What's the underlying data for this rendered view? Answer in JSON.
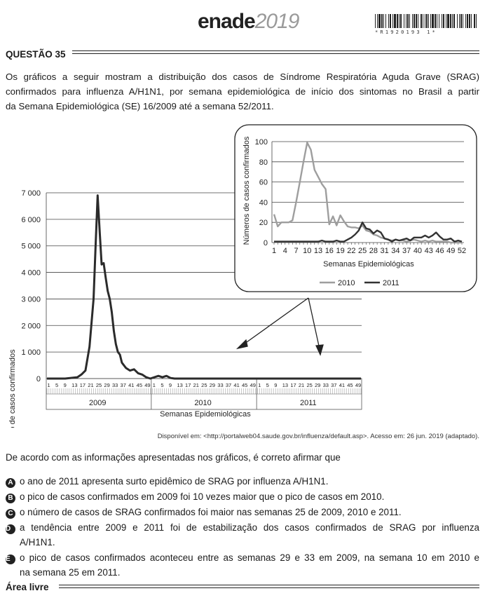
{
  "header": {
    "logo_bold": "enade",
    "logo_year": "2019",
    "barcode_digits": "*R1920193 1*"
  },
  "question": {
    "title": "QUESTÃO 35",
    "intro_1": "Os gráficos a seguir mostram a distribuição dos casos de Síndrome Respiratória Aguda Grave (SRAG)",
    "intro_2": "confirmados para influenza A/H1N1, por semana epidemiológica de início dos sintomas no Brasil a partir",
    "intro_3": "da Semana Epidemiológica (SE) 16/2009 até a semana 52/2011.",
    "source": "Disponível em: <http://portalweb04.saude.gov.br/influenza/default.asp>. Acesso em: 26 jun. 2019 (adaptado).",
    "stem": "De acordo com as informações apresentadas nos gráficos, é correto afirmar que",
    "alternatives": [
      {
        "letter": "A",
        "line1": "o ano de 2011 apresenta surto epidêmico de SRAG por influenza A/H1N1.",
        "line2": ""
      },
      {
        "letter": "B",
        "line1": "o pico de casos confirmados em 2009 foi 10 vezes maior que o pico de casos em 2010.",
        "line2": ""
      },
      {
        "letter": "C",
        "line1": "o número de casos de SRAG confirmados foi maior nas semanas 25 de 2009, 2010 e 2011.",
        "line2": ""
      },
      {
        "letter": "D",
        "line1": "a tendência entre 2009 e 2011 foi de estabilização dos casos confirmados de SRAG por influenza",
        "line2": "A/H1N1."
      },
      {
        "letter": "E",
        "line1": "o pico de casos confirmados aconteceu entre as semanas 29 e 33 em 2009, na semana 10 em 2010 e",
        "line2": "na semana 25 em 2011."
      }
    ],
    "free_area": "Área livre"
  },
  "chart_data": [
    {
      "type": "line",
      "ylabel": "Número de casos confirmados",
      "xlabel": "Semanas Epidemiológicas",
      "ylim": [
        0,
        7000
      ],
      "yticks": [
        "0",
        "1 000",
        "2 000",
        "3 000",
        "4 000",
        "5 000",
        "6 000",
        "7 000"
      ],
      "year_labels": [
        "2009",
        "2010",
        "2011"
      ],
      "week_ticks": [
        "1",
        "5",
        "9",
        "13",
        "17",
        "21",
        "25",
        "29",
        "33",
        "37",
        "41",
        "45",
        "49"
      ],
      "grid": true,
      "series": [
        {
          "x": [
            1,
            10,
            16,
            18,
            20,
            22,
            24,
            25,
            26,
            27,
            28,
            29,
            30,
            31,
            32,
            33,
            34,
            35,
            36,
            37,
            38,
            40,
            42,
            44,
            46,
            48,
            50,
            52,
            56,
            58,
            60,
            62,
            64,
            66,
            68,
            70,
            156
          ],
          "y": [
            0,
            0,
            50,
            150,
            300,
            1200,
            3000,
            5000,
            6900,
            5600,
            4300,
            4350,
            3800,
            3300,
            3000,
            2500,
            1800,
            1300,
            1000,
            900,
            600,
            400,
            300,
            350,
            200,
            150,
            50,
            0,
            100,
            50,
            100,
            20,
            0,
            0,
            0,
            0,
            0
          ]
        }
      ]
    },
    {
      "type": "line",
      "ylabel": "Números de casos confirmados",
      "xlabel": "Semanas Epidemiológicas",
      "ylim": [
        0,
        100
      ],
      "yticks": [
        "0",
        "20",
        "40",
        "60",
        "80",
        "100"
      ],
      "xticks": [
        "1",
        "4",
        "7",
        "10",
        "13",
        "16",
        "19",
        "22",
        "25",
        "28",
        "31",
        "34",
        "37",
        "40",
        "43",
        "46",
        "49",
        "52"
      ],
      "grid": true,
      "legend": "bottom",
      "series": [
        {
          "name": "2010",
          "color": "#9e9e9e",
          "x": [
            1,
            2,
            3,
            4,
            5,
            6,
            7,
            8,
            9,
            10,
            11,
            12,
            13,
            14,
            15,
            16,
            17,
            18,
            19,
            20,
            21,
            22,
            23,
            24,
            25,
            26,
            27,
            28,
            29,
            30,
            31,
            32,
            33,
            34,
            35,
            36,
            37,
            38,
            39,
            40,
            41,
            42,
            43,
            44,
            45,
            46,
            47,
            48,
            49,
            50,
            51,
            52
          ],
          "y": [
            28,
            16,
            20,
            20,
            20,
            22,
            40,
            60,
            80,
            99,
            92,
            72,
            65,
            58,
            53,
            18,
            26,
            17,
            27,
            21,
            16,
            15,
            15,
            14,
            17,
            12,
            11,
            8,
            7,
            5,
            4,
            3,
            2,
            3,
            2,
            2,
            1,
            2,
            3,
            2,
            1,
            2,
            1,
            2,
            1,
            1,
            1,
            1,
            0,
            0,
            0,
            0
          ]
        },
        {
          "name": "2011",
          "color": "#333333",
          "x": [
            1,
            2,
            3,
            4,
            5,
            6,
            7,
            8,
            9,
            10,
            11,
            12,
            13,
            14,
            15,
            16,
            17,
            18,
            19,
            20,
            21,
            22,
            23,
            24,
            25,
            26,
            27,
            28,
            29,
            30,
            31,
            32,
            33,
            34,
            35,
            36,
            37,
            38,
            39,
            40,
            41,
            42,
            43,
            44,
            45,
            46,
            47,
            48,
            49,
            50,
            51,
            52
          ],
          "y": [
            1,
            1,
            1,
            1,
            1,
            1,
            1,
            1,
            1,
            1,
            1,
            1,
            1,
            2,
            1,
            1,
            1,
            2,
            1,
            1,
            3,
            5,
            8,
            12,
            20,
            14,
            13,
            9,
            12,
            10,
            4,
            3,
            1,
            3,
            2,
            3,
            4,
            2,
            5,
            5,
            5,
            7,
            5,
            7,
            10,
            6,
            3,
            3,
            4,
            1,
            2,
            1
          ]
        }
      ]
    }
  ]
}
